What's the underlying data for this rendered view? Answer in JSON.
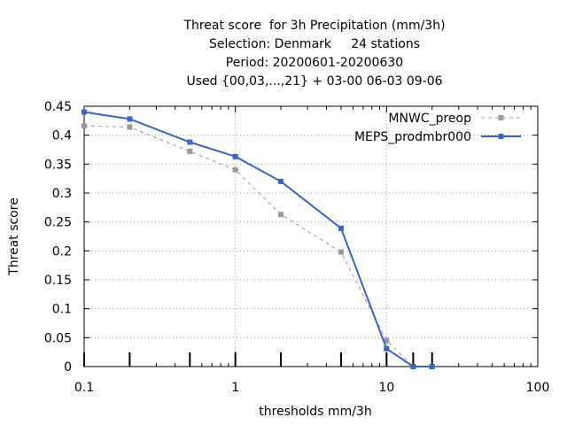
{
  "chart_data": {
    "type": "line",
    "title_lines": [
      "Threat score  for 3h Precipitation (mm/3h)",
      "Selection: Denmark     24 stations",
      "Period: 20200601-20200630",
      "Used {00,03,...,21} + 03-00 06-03 09-06"
    ],
    "xlabel": "thresholds mm/3h",
    "ylabel": "Threat score",
    "xscale": "log",
    "xlim": [
      0.1,
      100
    ],
    "ylim": [
      0,
      0.45
    ],
    "grid": true,
    "legend_position": "top-right",
    "x_ticks": [
      "0.1",
      "1",
      "10",
      "100"
    ],
    "y_ticks": [
      "0",
      "0.05",
      "0.1",
      "0.15",
      "0.2",
      "0.25",
      "0.3",
      "0.35",
      "0.4",
      "0.45"
    ],
    "threshold_markers": [
      0.1,
      0.2,
      0.5,
      1,
      2,
      5,
      10,
      15,
      20
    ],
    "series": [
      {
        "name": "MNWC_preop",
        "color": "#999999",
        "style": "dashed",
        "x": [
          0.1,
          0.2,
          0.5,
          1,
          2,
          5,
          10,
          15,
          20
        ],
        "values": [
          0.416,
          0.414,
          0.372,
          0.34,
          0.263,
          0.198,
          0.045,
          0.0,
          0.0
        ]
      },
      {
        "name": "MEPS_prodmbr000",
        "color": "#3a62cc",
        "style": "solid",
        "x": [
          0.1,
          0.2,
          0.5,
          1,
          2,
          5,
          10,
          15,
          20
        ],
        "values": [
          0.44,
          0.428,
          0.388,
          0.363,
          0.32,
          0.239,
          0.031,
          0.0,
          0.0
        ]
      }
    ]
  }
}
